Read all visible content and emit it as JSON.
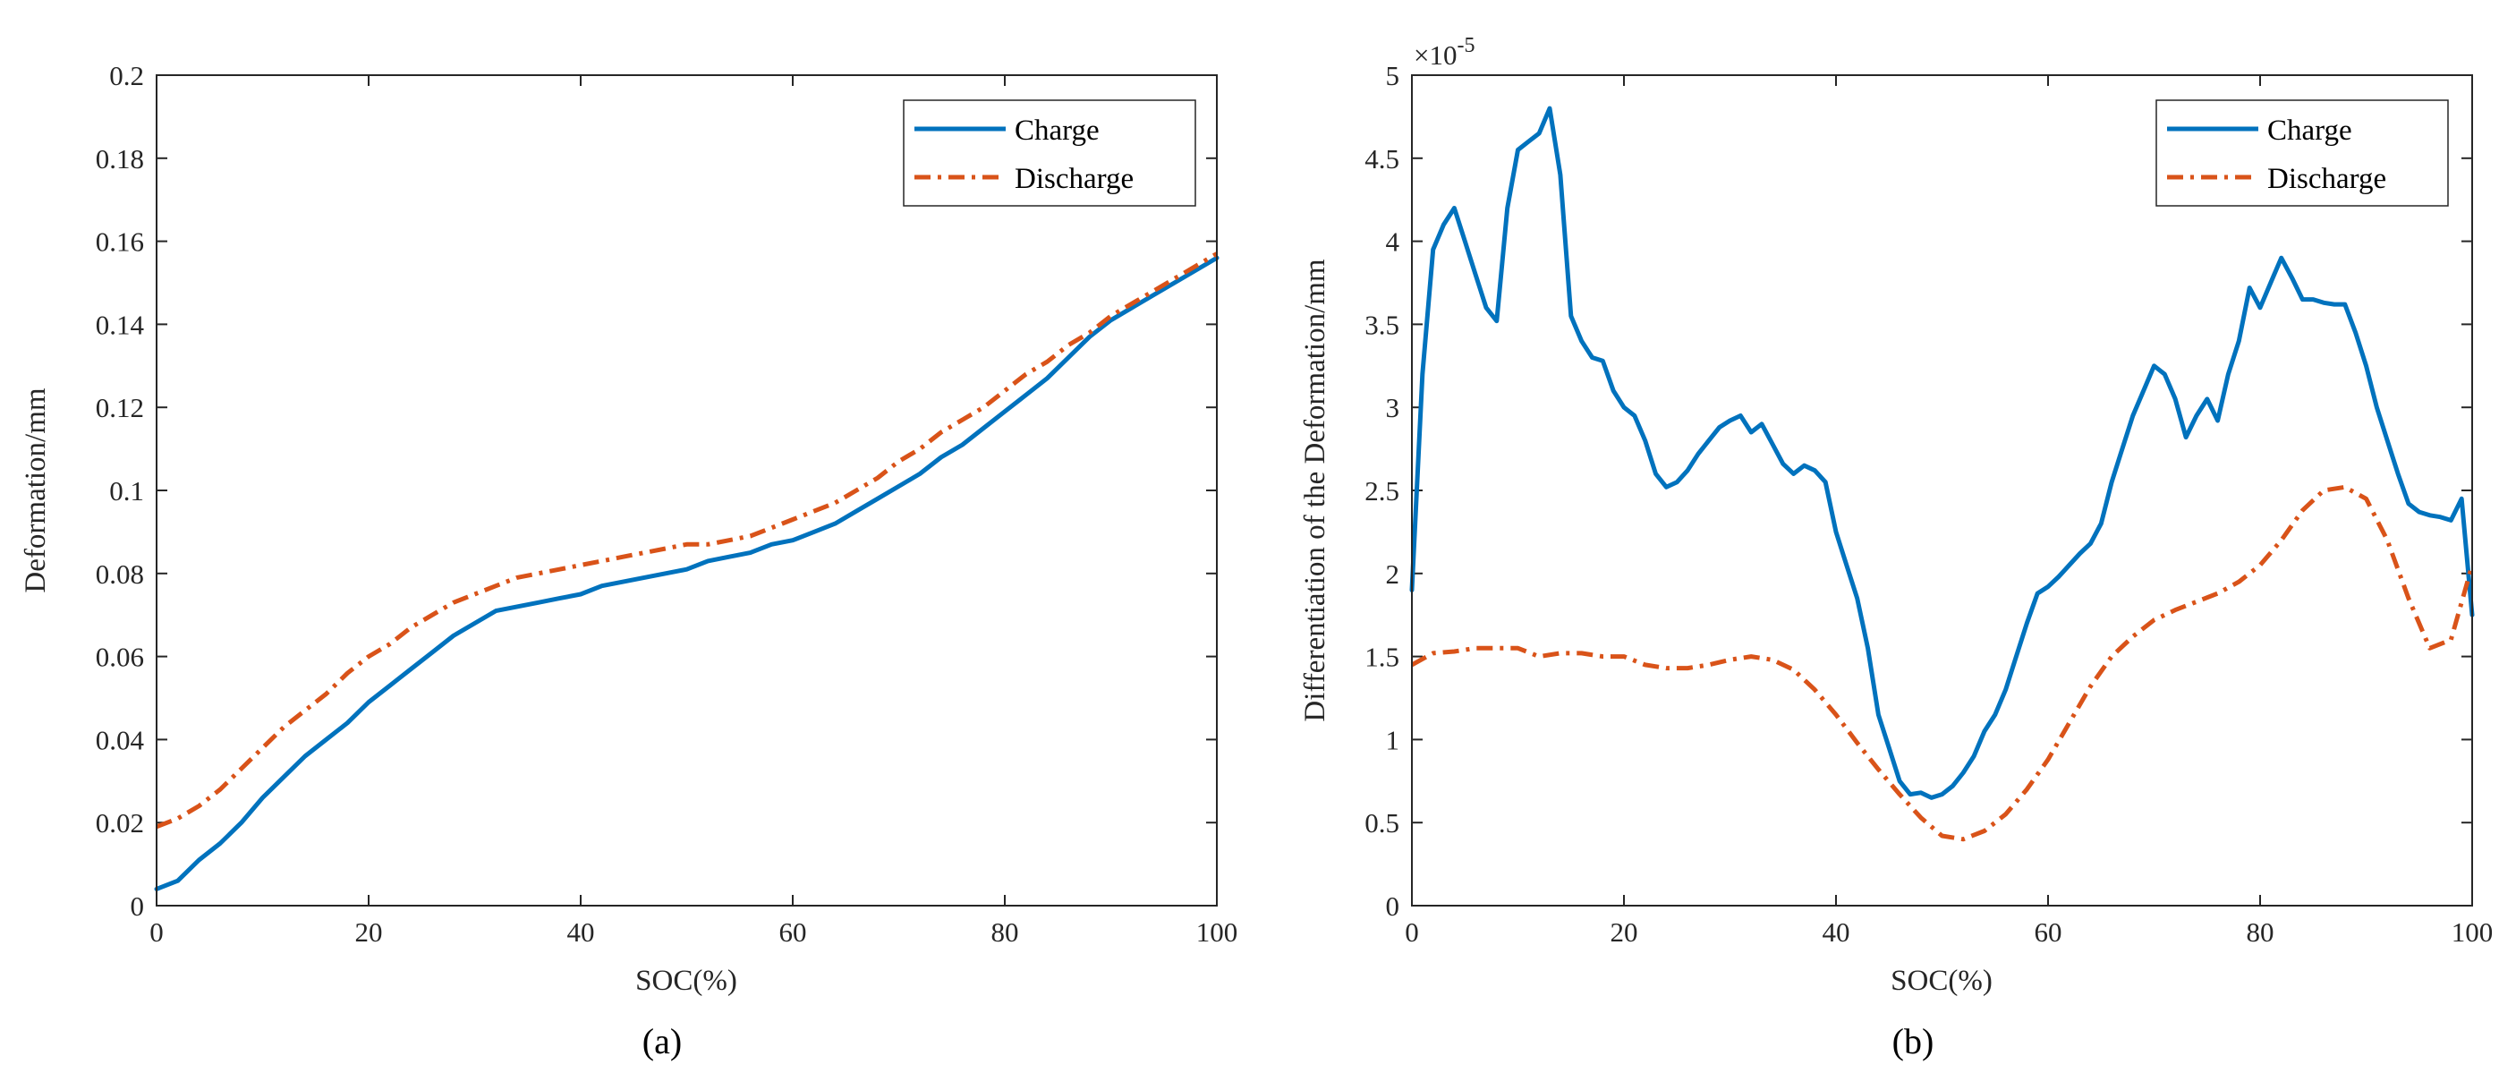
{
  "chart_data": [
    {
      "type": "line",
      "caption": "(a)",
      "xlabel": "SOC(%)",
      "ylabel": "Deformation/mm",
      "xlim": [
        0,
        100
      ],
      "ylim": [
        0,
        0.2
      ],
      "xticks": [
        0,
        20,
        40,
        60,
        80,
        100
      ],
      "xtick_labels": [
        "0",
        "20",
        "40",
        "60",
        "80",
        "100"
      ],
      "yticks": [
        0,
        0.02,
        0.04,
        0.06,
        0.08,
        0.1,
        0.12,
        0.14,
        0.16,
        0.18,
        0.2
      ],
      "ytick_labels": [
        "0",
        "0.02",
        "0.04",
        "0.06",
        "0.08",
        "0.1",
        "0.12",
        "0.14",
        "0.16",
        "0.18",
        "0.2"
      ],
      "exponent_label": "",
      "legend_position": "top-right",
      "series": [
        {
          "name": "Charge",
          "color": "#0072BD",
          "style": "solid",
          "x": [
            0,
            2,
            4,
            6,
            8,
            10,
            12,
            14,
            16,
            18,
            20,
            22,
            24,
            26,
            28,
            30,
            32,
            34,
            36,
            38,
            40,
            42,
            44,
            46,
            48,
            50,
            52,
            54,
            56,
            58,
            60,
            62,
            64,
            66,
            68,
            70,
            72,
            74,
            76,
            78,
            80,
            82,
            84,
            86,
            88,
            90,
            92,
            94,
            96,
            98,
            100
          ],
          "y": [
            0.004,
            0.006,
            0.011,
            0.015,
            0.02,
            0.026,
            0.031,
            0.036,
            0.04,
            0.044,
            0.049,
            0.053,
            0.057,
            0.061,
            0.065,
            0.068,
            0.071,
            0.072,
            0.073,
            0.074,
            0.075,
            0.077,
            0.078,
            0.079,
            0.08,
            0.081,
            0.083,
            0.084,
            0.085,
            0.087,
            0.088,
            0.09,
            0.092,
            0.095,
            0.098,
            0.101,
            0.104,
            0.108,
            0.111,
            0.115,
            0.119,
            0.123,
            0.127,
            0.132,
            0.137,
            0.141,
            0.144,
            0.147,
            0.15,
            0.153,
            0.156
          ]
        },
        {
          "name": "Discharge",
          "color": "#D95319",
          "style": "dashdot",
          "x": [
            0,
            2,
            4,
            6,
            8,
            10,
            12,
            14,
            16,
            18,
            20,
            22,
            24,
            26,
            28,
            30,
            32,
            34,
            36,
            38,
            40,
            42,
            44,
            46,
            48,
            50,
            52,
            54,
            56,
            58,
            60,
            62,
            64,
            66,
            68,
            70,
            72,
            74,
            76,
            78,
            80,
            82,
            84,
            86,
            88,
            90,
            92,
            94,
            96,
            98,
            100
          ],
          "y": [
            0.019,
            0.021,
            0.024,
            0.028,
            0.033,
            0.038,
            0.043,
            0.047,
            0.051,
            0.056,
            0.06,
            0.063,
            0.067,
            0.07,
            0.073,
            0.075,
            0.077,
            0.079,
            0.08,
            0.081,
            0.082,
            0.083,
            0.084,
            0.085,
            0.086,
            0.087,
            0.087,
            0.088,
            0.089,
            0.091,
            0.093,
            0.095,
            0.097,
            0.1,
            0.103,
            0.107,
            0.11,
            0.114,
            0.117,
            0.12,
            0.124,
            0.128,
            0.131,
            0.135,
            0.138,
            0.142,
            0.145,
            0.148,
            0.151,
            0.154,
            0.157
          ]
        }
      ]
    },
    {
      "type": "line",
      "caption": "(b)",
      "xlabel": "SOC(%)",
      "ylabel": "Differentiation of the Deformation/mm",
      "xlim": [
        0,
        100
      ],
      "ylim": [
        0,
        5
      ],
      "xticks": [
        0,
        20,
        40,
        60,
        80,
        100
      ],
      "xtick_labels": [
        "0",
        "20",
        "40",
        "60",
        "80",
        "100"
      ],
      "yticks": [
        0,
        0.5,
        1,
        1.5,
        2,
        2.5,
        3,
        3.5,
        4,
        4.5,
        5
      ],
      "ytick_labels": [
        "0",
        "0.5",
        "1",
        "1.5",
        "2",
        "2.5",
        "3",
        "3.5",
        "4",
        "4.5",
        "5"
      ],
      "exponent_label": "×10",
      "exponent_sup": "-5",
      "legend_position": "top-right",
      "series": [
        {
          "name": "Charge",
          "color": "#0072BD",
          "style": "solid",
          "x": [
            0,
            1,
            2,
            3,
            4,
            5,
            6,
            7,
            8,
            9,
            10,
            11,
            12,
            13,
            14,
            15,
            16,
            17,
            18,
            19,
            20,
            21,
            22,
            23,
            24,
            25,
            26,
            27,
            28,
            29,
            30,
            31,
            32,
            33,
            34,
            35,
            36,
            37,
            38,
            39,
            40,
            41,
            42,
            43,
            44,
            45,
            46,
            47,
            48,
            49,
            50,
            51,
            52,
            53,
            54,
            55,
            56,
            57,
            58,
            59,
            60,
            61,
            62,
            63,
            64,
            65,
            66,
            67,
            68,
            69,
            70,
            71,
            72,
            73,
            74,
            75,
            76,
            77,
            78,
            79,
            80,
            81,
            82,
            83,
            84,
            85,
            86,
            87,
            88,
            89,
            90,
            91,
            92,
            93,
            94,
            95,
            96,
            97,
            98,
            99,
            100
          ],
          "y": [
            1.9,
            3.2,
            3.95,
            4.1,
            4.2,
            4.0,
            3.8,
            3.6,
            3.52,
            4.2,
            4.55,
            4.6,
            4.65,
            4.8,
            4.4,
            3.55,
            3.4,
            3.3,
            3.28,
            3.1,
            3.0,
            2.95,
            2.8,
            2.6,
            2.52,
            2.55,
            2.62,
            2.72,
            2.8,
            2.88,
            2.92,
            2.95,
            2.85,
            2.9,
            2.78,
            2.66,
            2.6,
            2.65,
            2.62,
            2.55,
            2.25,
            2.05,
            1.85,
            1.55,
            1.15,
            0.95,
            0.75,
            0.67,
            0.68,
            0.65,
            0.67,
            0.72,
            0.8,
            0.9,
            1.05,
            1.15,
            1.3,
            1.5,
            1.7,
            1.88,
            1.92,
            1.98,
            2.05,
            2.12,
            2.18,
            2.3,
            2.55,
            2.75,
            2.95,
            3.1,
            3.25,
            3.2,
            3.05,
            2.82,
            2.95,
            3.05,
            2.92,
            3.2,
            3.4,
            3.72,
            3.6,
            3.75,
            3.9,
            3.78,
            3.65,
            3.65,
            3.63,
            3.62,
            3.62,
            3.45,
            3.25,
            3.0,
            2.8,
            2.6,
            2.42,
            2.37,
            2.35,
            2.34,
            2.32,
            2.45,
            1.75
          ]
        },
        {
          "name": "Discharge",
          "color": "#D95319",
          "style": "dashdot",
          "x": [
            0,
            2,
            4,
            6,
            8,
            10,
            12,
            14,
            16,
            18,
            20,
            22,
            24,
            26,
            28,
            30,
            32,
            34,
            36,
            38,
            40,
            42,
            44,
            46,
            48,
            50,
            52,
            54,
            56,
            58,
            60,
            62,
            64,
            66,
            68,
            70,
            72,
            74,
            76,
            78,
            80,
            82,
            84,
            86,
            88,
            90,
            92,
            94,
            96,
            98,
            100
          ],
          "y": [
            1.45,
            1.52,
            1.53,
            1.55,
            1.55,
            1.55,
            1.5,
            1.52,
            1.52,
            1.5,
            1.5,
            1.45,
            1.43,
            1.43,
            1.45,
            1.48,
            1.5,
            1.48,
            1.42,
            1.3,
            1.15,
            0.98,
            0.82,
            0.67,
            0.53,
            0.42,
            0.4,
            0.45,
            0.55,
            0.7,
            0.88,
            1.1,
            1.32,
            1.5,
            1.62,
            1.72,
            1.78,
            1.83,
            1.88,
            1.95,
            2.05,
            2.2,
            2.38,
            2.5,
            2.52,
            2.45,
            2.2,
            1.85,
            1.55,
            1.6,
            2.05
          ]
        }
      ]
    }
  ]
}
